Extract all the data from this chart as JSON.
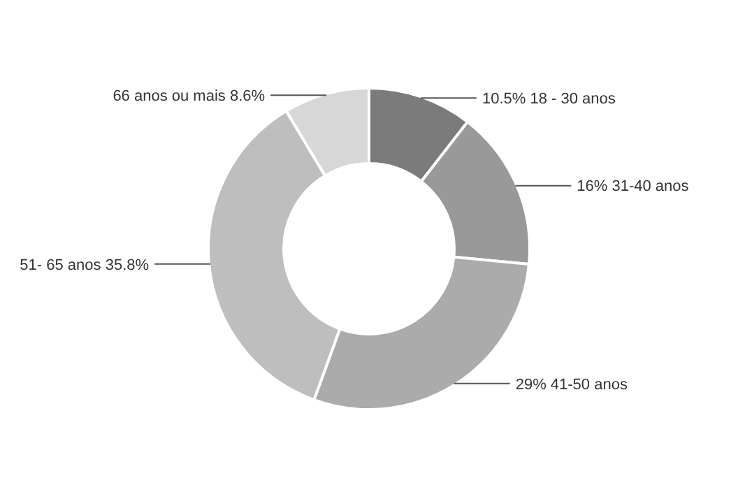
{
  "chart_data": {
    "type": "donut",
    "categories": [
      "18 - 30 anos",
      "31-40 anos",
      "41-50 anos",
      "51- 65 anos",
      "66 anos ou mais"
    ],
    "values": [
      10.5,
      16,
      29,
      35.8,
      8.6
    ],
    "value_labels": [
      "10.5%",
      "16%",
      "29%",
      "35.8%",
      "8.6%"
    ],
    "colors": [
      "#7b7b7b",
      "#999999",
      "#ababab",
      "#bebebe",
      "#d7d7d7"
    ]
  }
}
